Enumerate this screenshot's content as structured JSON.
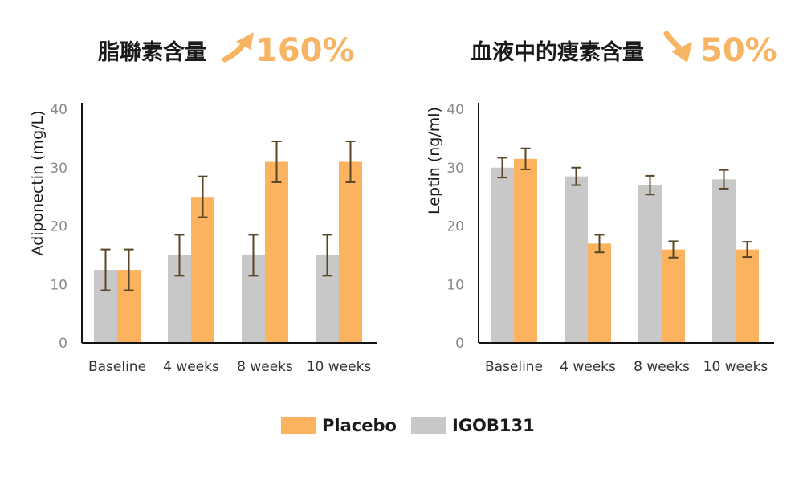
{
  "colors": {
    "placebo": "#fbb35f",
    "igob131": "#c8c8c8",
    "error_bar": "#5a4426",
    "axis": "#111111",
    "highlight": "#f7b564"
  },
  "charts": [
    {
      "title": "脂聯素含量",
      "highlight_value": "160%",
      "highlight_direction": "up",
      "highlight_icon": "arrow-up-curved-icon"
    },
    {
      "title": "血液中的瘦素含量",
      "highlight_value": "50%",
      "highlight_direction": "down",
      "highlight_icon": "arrow-down-curved-icon"
    }
  ],
  "legend": [
    {
      "label": "Placebo",
      "color": "#fbb35f"
    },
    {
      "label": "IGOB131",
      "color": "#c8c8c8"
    }
  ],
  "chart_data": [
    {
      "type": "bar",
      "title": "",
      "xlabel": "",
      "ylabel": "Adiponectin (mg/L)",
      "ylim": [
        0,
        40
      ],
      "yticks": [
        0,
        10,
        20,
        30,
        40
      ],
      "categories": [
        "Baseline",
        "4 weeks",
        "8 weeks",
        "10 weeks"
      ],
      "grid": false,
      "series": [
        {
          "name": "IGOB131",
          "values": [
            12.5,
            15,
            15,
            15
          ],
          "error": [
            3.5,
            3.5,
            3.5,
            3.5
          ]
        },
        {
          "name": "Placebo",
          "values": [
            12.5,
            25,
            31,
            31
          ],
          "error": [
            3.5,
            3.5,
            3.5,
            3.5
          ]
        }
      ]
    },
    {
      "type": "bar",
      "title": "",
      "xlabel": "",
      "ylabel": "Leptin (ng/ml)",
      "ylim": [
        0,
        40
      ],
      "yticks": [
        0,
        10,
        20,
        30,
        40
      ],
      "categories": [
        "Baseline",
        "4 weeks",
        "8 weeks",
        "10 weeks"
      ],
      "grid": false,
      "series": [
        {
          "name": "IGOB131",
          "values": [
            30,
            28.5,
            27,
            28
          ],
          "error": [
            1.7,
            1.5,
            1.6,
            1.6
          ]
        },
        {
          "name": "Placebo",
          "values": [
            31.5,
            17,
            16,
            16
          ],
          "error": [
            1.8,
            1.5,
            1.4,
            1.3
          ]
        }
      ]
    }
  ]
}
